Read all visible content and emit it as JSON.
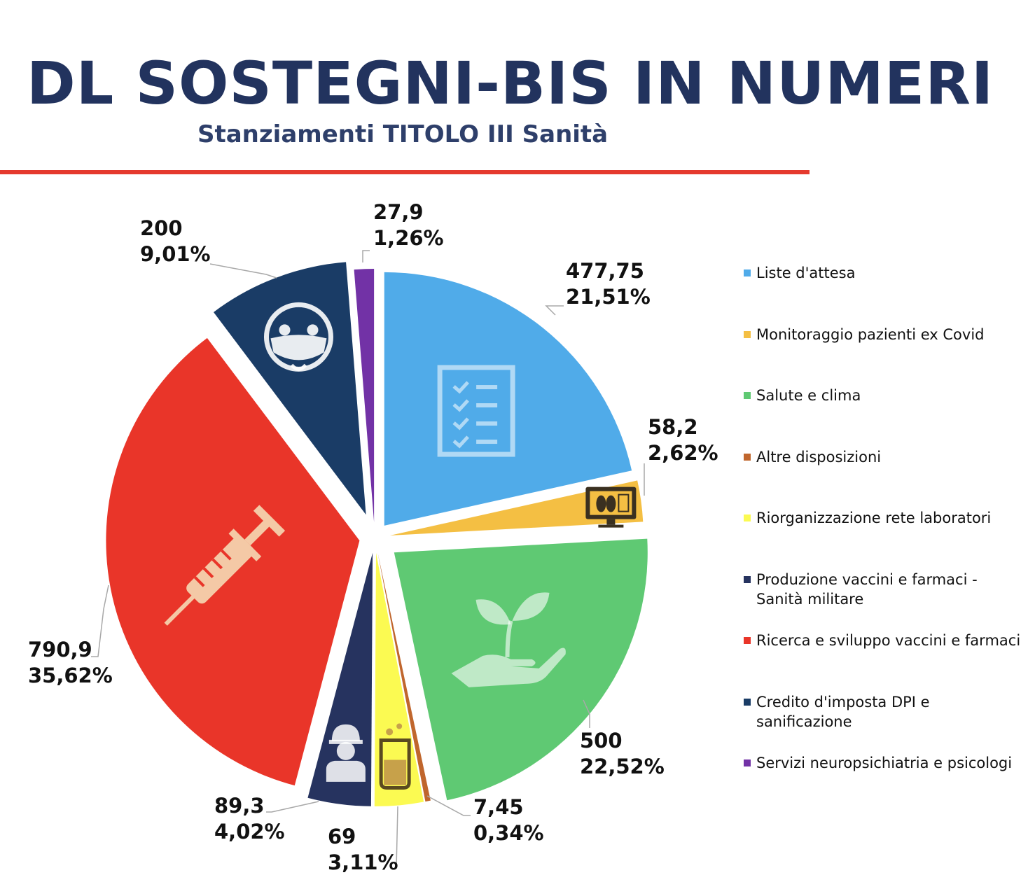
{
  "header": {
    "title": "DL SOSTEGNI-BIS IN NUMERI",
    "subtitle": "Stanziamenti TITOLO III Sanità",
    "rule_color": "#e53a2e"
  },
  "chart_data": {
    "type": "pie",
    "title": "DL SOSTEGNI-BIS IN NUMERI",
    "subtitle": "Stanziamenti TITOLO III Sanità",
    "legend_position": "right",
    "slices": [
      {
        "name": "Liste d'attesa",
        "value": 477.75,
        "value_label": "477,75",
        "percent_label": "21,51%",
        "color": "#50abe9",
        "icon": "checklist-icon"
      },
      {
        "name": "Monitoraggio pazienti ex Covid",
        "value": 58.2,
        "value_label": "58,2",
        "percent_label": "2,62%",
        "color": "#f4bf43",
        "icon": "lung-monitor-icon"
      },
      {
        "name": "Salute e clima",
        "value": 500,
        "value_label": "500",
        "percent_label": "22,52%",
        "color": "#5fc973",
        "icon": "plant-hand-icon"
      },
      {
        "name": "Altre disposizioni",
        "value": 7.45,
        "value_label": "7,45",
        "percent_label": "0,34%",
        "color": "#c0662d",
        "icon": ""
      },
      {
        "name": "Riorganizzazione rete laboratori",
        "value": 69,
        "value_label": "69",
        "percent_label": "3,11%",
        "color": "#fbfa52",
        "icon": "beaker-icon"
      },
      {
        "name": "Produzione vaccini e farmaci - Sanità militare",
        "value": 89.3,
        "value_label": "89,3",
        "percent_label": "4,02%",
        "color": "#26335f",
        "icon": "military-worker-icon"
      },
      {
        "name": "Ricerca e sviluppo vaccini e farmaci",
        "value": 790.9,
        "value_label": "790,9",
        "percent_label": "35,62%",
        "color": "#e93529",
        "icon": "syringe-icon"
      },
      {
        "name": "Credito d'imposta DPI e sanificazione",
        "value": 200,
        "value_label": "200",
        "percent_label": "9,01%",
        "color": "#1a3c66",
        "icon": "masked-face-icon"
      },
      {
        "name": "Servizi neuropsichiatria e psicologi",
        "value": 27.9,
        "value_label": "27,9",
        "percent_label": "1,26%",
        "color": "#7232a6",
        "icon": ""
      }
    ]
  }
}
